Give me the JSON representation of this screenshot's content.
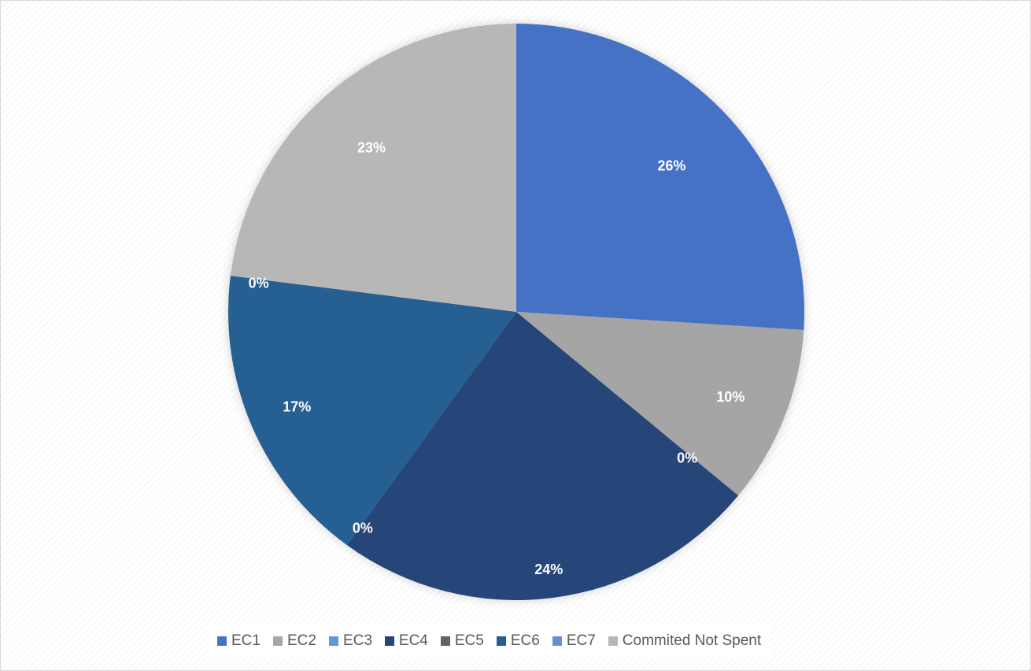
{
  "chart_data": {
    "type": "pie",
    "categories": [
      "EC1",
      "EC2",
      "EC3",
      "EC4",
      "EC5",
      "EC6",
      "EC7",
      "Commited Not Spent"
    ],
    "values": [
      26,
      10,
      0,
      24,
      0,
      17,
      0,
      23
    ],
    "labels": [
      "26%",
      "10%",
      "0%",
      "24%",
      "0%",
      "17%",
      "0%",
      "23%"
    ],
    "colors": [
      "#4472c4",
      "#a5a5a5",
      "#5b9bd5",
      "#264478",
      "#636363",
      "#255e91",
      "#698ed0",
      "#b7b7b7"
    ],
    "legend_position": "bottom"
  }
}
